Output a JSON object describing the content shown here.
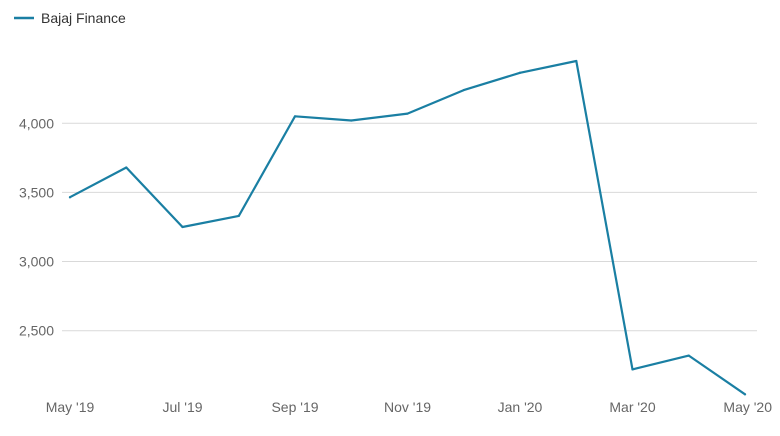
{
  "chart_data": {
    "type": "line",
    "title": "",
    "xlabel": "",
    "ylabel": "",
    "legend": {
      "placement": "top-left"
    },
    "grid": "horizontal",
    "categories": [
      "May '19",
      "Jun '19",
      "Jul '19",
      "Aug '19",
      "Sep '19",
      "Oct '19",
      "Nov '19",
      "Dec '19",
      "Jan '20",
      "Feb '20",
      "Mar '20",
      "Apr '20",
      "May '20"
    ],
    "x_tick_labels": [
      "May '19",
      "Jul '19",
      "Sep '19",
      "Nov '19",
      "Jan '20",
      "Mar '20",
      "May '20"
    ],
    "y_tick_values": [
      2500,
      3000,
      3500,
      4000
    ],
    "y_tick_labels": [
      "2,500",
      "3,000",
      "3,500",
      "4,000"
    ],
    "ylim": [
      2035,
      4790
    ],
    "series": [
      {
        "name": "Bajaj Finance",
        "color": "#1a7fa3",
        "values": [
          3465,
          3680,
          3250,
          3330,
          4050,
          4020,
          4070,
          4240,
          4365,
          4450,
          2220,
          2320,
          2040
        ]
      }
    ]
  }
}
